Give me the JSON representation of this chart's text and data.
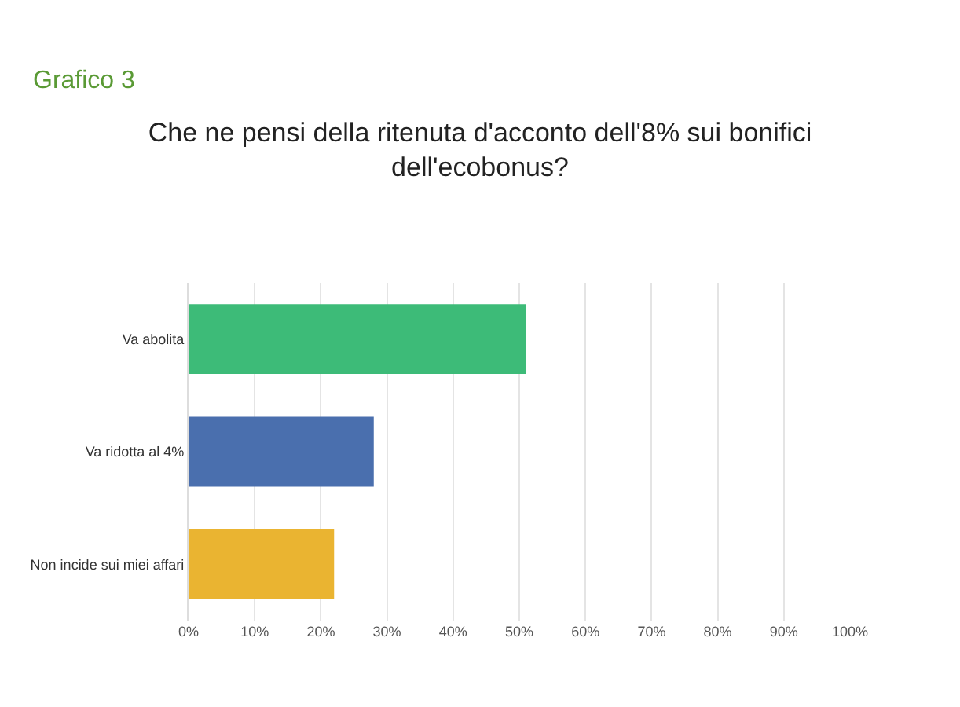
{
  "chart_data": {
    "type": "bar",
    "orientation": "horizontal",
    "title": "Che ne pensi della ritenuta d'acconto dell'8% sui bonifici dell'ecobonus?",
    "annotations": [
      "Grafico 3"
    ],
    "categories": [
      "Va abolita",
      "Va ridotta al 4%",
      "Non incide sui miei affari"
    ],
    "values": [
      51,
      28,
      22
    ],
    "colors": [
      "#3dbb78",
      "#4a6fae",
      "#eab431"
    ],
    "xlim": [
      0,
      100
    ],
    "xticks": [
      {
        "value": 0,
        "label": "0%"
      },
      {
        "value": 10,
        "label": "10%"
      },
      {
        "value": 20,
        "label": "20%"
      },
      {
        "value": 30,
        "label": "30%"
      },
      {
        "value": 40,
        "label": "40%"
      },
      {
        "value": 50,
        "label": "50%"
      },
      {
        "value": 60,
        "label": "60%"
      },
      {
        "value": 70,
        "label": "70%"
      },
      {
        "value": 80,
        "label": "80%"
      },
      {
        "value": 90,
        "label": "90%"
      },
      {
        "value": 100,
        "label": "100%"
      }
    ],
    "grid": "x"
  }
}
